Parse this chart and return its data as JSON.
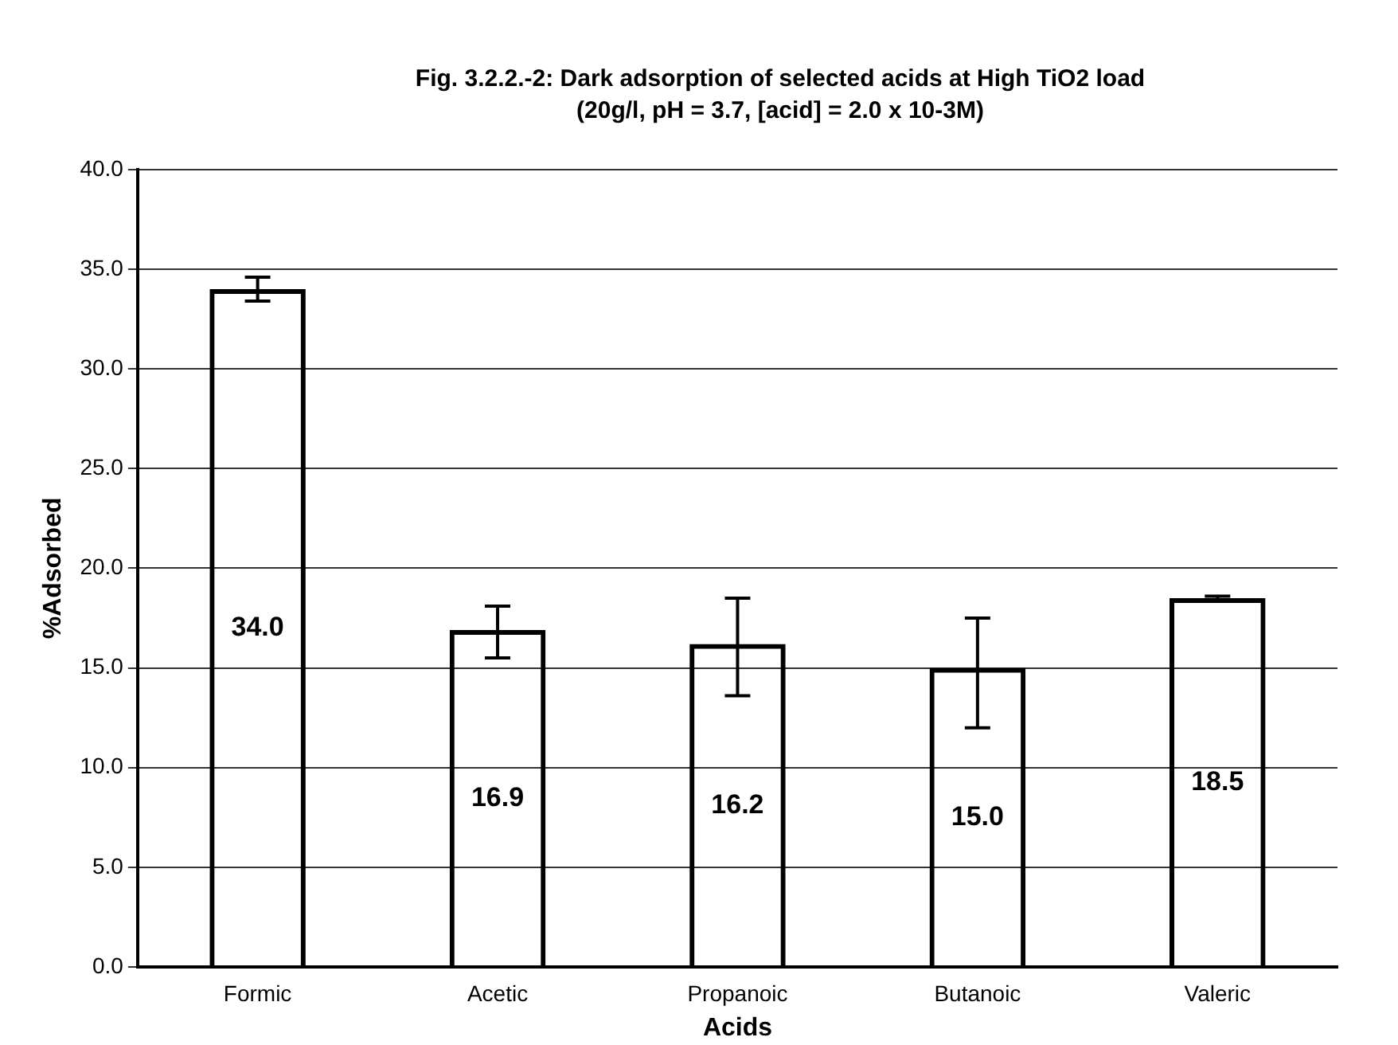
{
  "chart_data": {
    "type": "bar",
    "title": "Fig. 3.2.2.-2: Dark adsorption of selected acids at High TiO2 load (20g/l, pH = 3.7, [acid] = 2.0 x 10-3M)",
    "xlabel": "Acids",
    "ylabel": "%Adsorbed",
    "categories": [
      "Formic",
      "Acetic",
      "Propanoic",
      "Butanoic",
      "Valeric"
    ],
    "values": [
      34.0,
      16.9,
      16.2,
      15.0,
      18.5
    ],
    "errors": [
      0.6,
      [
        15.5,
        18.1
      ],
      [
        13.6,
        18.5
      ],
      [
        12.0,
        17.5
      ],
      0.1
    ],
    "value_labels": [
      "34.0",
      "16.9",
      "16.2",
      "15.0",
      "18.5"
    ],
    "color": "#000000",
    "grid": "y",
    "legend": false,
    "ylim": [
      0,
      40
    ],
    "yticks": [
      {
        "value": 0,
        "label": "0.0"
      },
      {
        "value": 5,
        "label": "5.0"
      },
      {
        "value": 10,
        "label": "10.0"
      },
      {
        "value": 15,
        "label": "15.0"
      },
      {
        "value": 20,
        "label": "20.0"
      },
      {
        "value": 25,
        "label": "25.0"
      },
      {
        "value": 30,
        "label": "30.0"
      },
      {
        "value": 35,
        "label": "35.0"
      },
      {
        "value": 40,
        "label": "40.0"
      }
    ]
  }
}
